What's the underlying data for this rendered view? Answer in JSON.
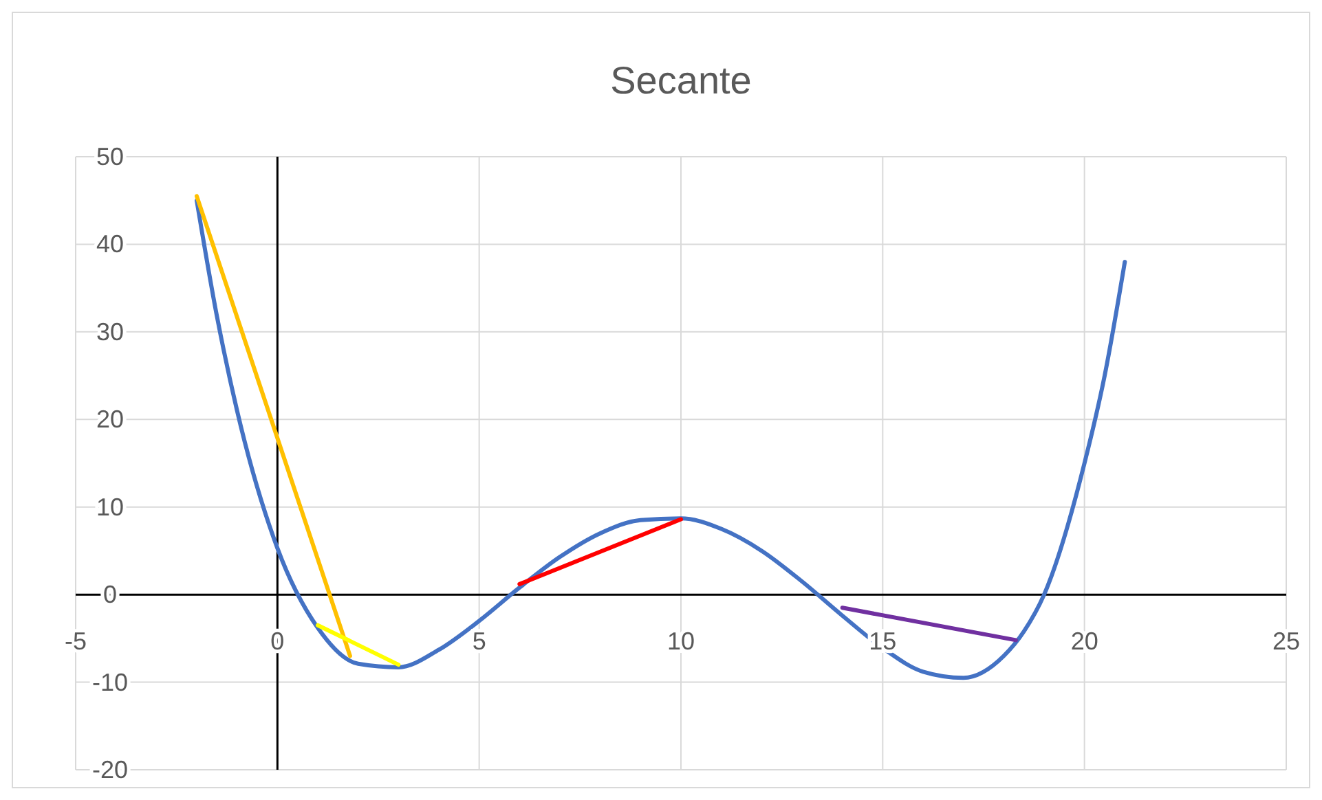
{
  "chart_data": {
    "type": "line",
    "title": "Secante",
    "xlim": [
      -5,
      25
    ],
    "xticks": [
      -5,
      0,
      5,
      10,
      15,
      20,
      25
    ],
    "ylim": [
      -20,
      50
    ],
    "yticks": [
      -20,
      -10,
      0,
      10,
      20,
      30,
      40,
      50
    ],
    "grid": true,
    "marker": "none",
    "line_style": "solid",
    "series": [
      {
        "color": "#4472c4",
        "x": [
          -2,
          -1.5,
          -1,
          0,
          1,
          2,
          3,
          4,
          5,
          6,
          7,
          8,
          9,
          10,
          11,
          12,
          13,
          14,
          15,
          16,
          17,
          18,
          18.5,
          19,
          20,
          20.5,
          21
        ],
        "values": [
          45,
          31.8,
          21,
          5.3,
          -3.8,
          -7.9,
          -8.3,
          -6.3,
          -3,
          0.8,
          4.3,
          7,
          8.5,
          8.7,
          7.5,
          5,
          1.5,
          -2.4,
          -6.1,
          -8.8,
          -9.5,
          -7,
          -4.2,
          0,
          15,
          25,
          38
        ]
      },
      {
        "color": "#ffc000",
        "x": [
          -2,
          1.8
        ],
        "values": [
          45.5,
          -7
        ]
      },
      {
        "color": "#ffff00",
        "x": [
          1,
          3
        ],
        "values": [
          -3.5,
          -8
        ]
      },
      {
        "color": "#ff0000",
        "x": [
          6,
          10
        ],
        "values": [
          1.2,
          8.6
        ]
      },
      {
        "color": "#7030a0",
        "x": [
          14,
          18.3
        ],
        "values": [
          -1.5,
          -5.2
        ]
      }
    ]
  }
}
